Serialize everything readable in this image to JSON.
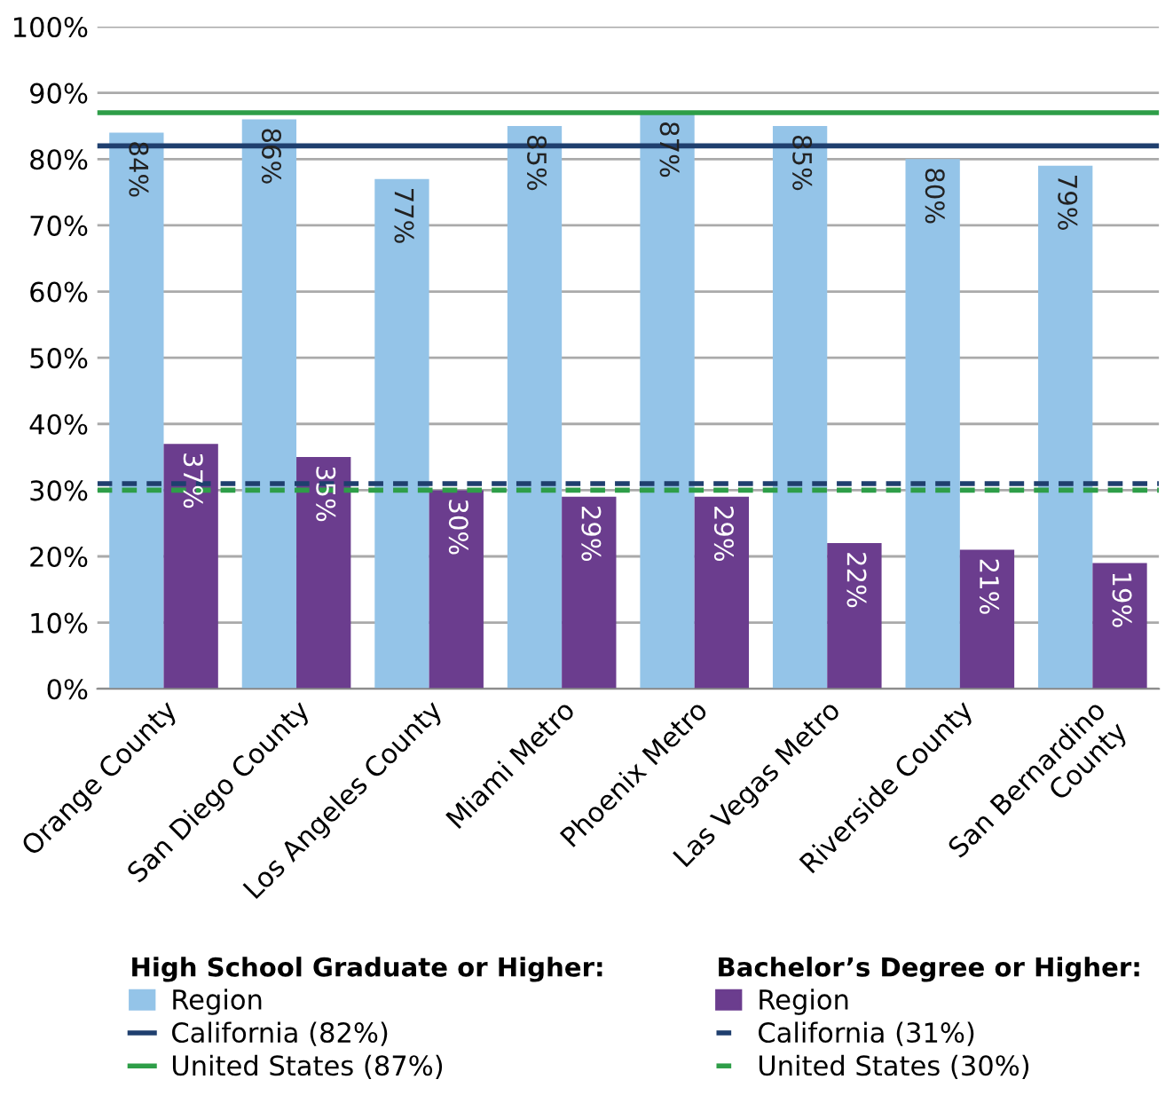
{
  "chart_data": {
    "type": "bar",
    "categories": [
      "Orange County",
      "San Diego County",
      "Los Angeles County",
      "Miami Metro",
      "Phoenix Metro",
      "Las Vegas Metro",
      "Riverside County",
      "San Bernardino\nCounty"
    ],
    "series": [
      {
        "name": "Region",
        "color": "#94c4e8",
        "values": [
          84,
          86,
          77,
          85,
          87,
          85,
          80,
          79
        ],
        "value_labels": [
          "84%",
          "86%",
          "77%",
          "85%",
          "87%",
          "85%",
          "80%",
          "79%"
        ]
      },
      {
        "name": "Region",
        "color": "#6b3d8e",
        "values": [
          37,
          35,
          30,
          29,
          29,
          22,
          21,
          19
        ],
        "value_labels": [
          "37%",
          "35%",
          "30%",
          "29%",
          "29%",
          "22%",
          "21%",
          "19%"
        ]
      }
    ],
    "ref_lines": [
      {
        "axis": "y",
        "value": 82,
        "label": "California (82%)",
        "color": "#1f3f6e",
        "line_style": "solid"
      },
      {
        "axis": "y",
        "value": 87,
        "label": "United States (87%)",
        "color": "#2e9e48",
        "line_style": "solid"
      },
      {
        "axis": "y",
        "value": 31,
        "label": "California (31%)",
        "color": "#1f3f6e",
        "line_style": "dashed"
      },
      {
        "axis": "y",
        "value": 30,
        "label": "United States (30%)",
        "color": "#2e9e48",
        "line_style": "dashed"
      }
    ],
    "legend_title": [
      "High School Graduate or Higher:",
      "Bachelor’s Degree or Higher:"
    ],
    "ylim": [
      0,
      100
    ],
    "yticks": [
      {
        "value": 0,
        "label": "0%"
      },
      {
        "value": 10,
        "label": "10%"
      },
      {
        "value": 20,
        "label": "20%"
      },
      {
        "value": 30,
        "label": "30%"
      },
      {
        "value": 40,
        "label": "40%"
      },
      {
        "value": 50,
        "label": "50%"
      },
      {
        "value": 60,
        "label": "60%"
      },
      {
        "value": 70,
        "label": "70%"
      },
      {
        "value": 80,
        "label": "80%"
      },
      {
        "value": 90,
        "label": "90%"
      },
      {
        "value": 100,
        "label": "100%"
      }
    ],
    "grid": "y",
    "legend": "bottom"
  }
}
